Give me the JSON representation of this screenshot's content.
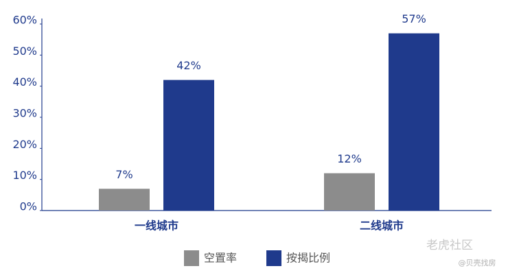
{
  "chart_data": {
    "type": "bar",
    "categories": [
      "一线城市",
      "二线城市"
    ],
    "series": [
      {
        "name": "空置率",
        "color": "#8c8c8c",
        "values": [
          7,
          12
        ],
        "value_labels": [
          "7%",
          "12%"
        ]
      },
      {
        "name": "按揭比例",
        "color": "#1f3a8c",
        "values": [
          42,
          57
        ],
        "value_labels": [
          "42%",
          "57%"
        ]
      }
    ],
    "ylim": [
      0,
      60
    ],
    "yticks": [
      {
        "value": 0,
        "label": "0%"
      },
      {
        "value": 10,
        "label": "10%"
      },
      {
        "value": 20,
        "label": "20%"
      },
      {
        "value": 30,
        "label": "30%"
      },
      {
        "value": 40,
        "label": "40%"
      },
      {
        "value": 50,
        "label": "50%"
      },
      {
        "value": 60,
        "label": "60%"
      }
    ],
    "legend": "bottom",
    "watermark": {
      "title": "老虎社区",
      "source": "@贝壳找房"
    }
  }
}
